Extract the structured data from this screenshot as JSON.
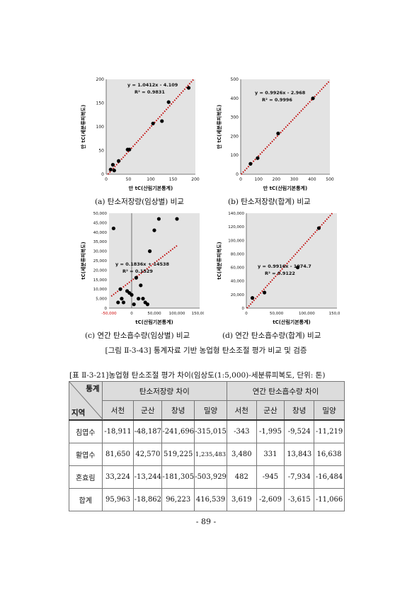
{
  "charts": [
    {
      "id": "a",
      "caption": "(a) 탄소저장량(임상별) 비교",
      "eq": "y = 1.0412x - 4.109",
      "r2": "R² = 0.9831",
      "xlabel": "만 tC(산림기본통계)",
      "ylabel": "만 tC(세분류피복도)",
      "xticks": [
        "0",
        "50",
        "100",
        "150",
        "200"
      ],
      "yticks": [
        "0",
        "50",
        "100",
        "150",
        "200"
      ]
    },
    {
      "id": "b",
      "caption": "(b) 탄소저장량(합계) 비교",
      "eq": "y = 0.9926x - 2.968",
      "r2": "R² = 0.9996",
      "xlabel": "만 tC(산림기본통계)",
      "ylabel": "만 tC(세분류피복도)",
      "xticks": [
        "0",
        "100",
        "200",
        "300",
        "400",
        "500"
      ],
      "yticks": [
        "0",
        "100",
        "200",
        "300",
        "400",
        "500"
      ]
    },
    {
      "id": "c",
      "caption": "(c) 연간 탄소흡수량(임상별) 비교",
      "eq": "y = 0.1836x + 14538",
      "r2": "R² = 0.1529",
      "xlabel": "tC(산림기본통계)",
      "ylabel": "tC(세분류피복도)",
      "xticks": [
        "-50,000",
        "0",
        "50,000",
        "100,000",
        "150,000"
      ],
      "yticks": [
        "0",
        "5,000",
        "10,000",
        "15,000",
        "20,000",
        "25,000",
        "30,000",
        "35,000",
        "40,000",
        "45,000",
        "50,000"
      ]
    },
    {
      "id": "d",
      "caption": "(d) 연간 탄소흡수량(합계) 비교",
      "eq": "y = 0.9916x - 1074.7",
      "r2": "R² = 0.9122",
      "xlabel": "tC(산림기본통계)",
      "ylabel": "tC(세분류피복도)",
      "xticks": [
        "0",
        "50,000",
        "100,000",
        "150,000"
      ],
      "yticks": [
        "0",
        "20,000",
        "40,000",
        "60,000",
        "80,000",
        "100,000",
        "120,000",
        "140,000"
      ]
    }
  ],
  "chart_data": [
    {
      "type": "scatter",
      "id": "a",
      "x": [
        10,
        15,
        18,
        28,
        48,
        52,
        105,
        125,
        140,
        185
      ],
      "y": [
        10,
        20,
        8,
        28,
        52,
        52,
        107,
        112,
        152,
        182
      ],
      "xlim": [
        0,
        200
      ],
      "ylim": [
        0,
        200
      ],
      "trendline": {
        "slope": 1.0412,
        "intercept": -4.109
      }
    },
    {
      "type": "scatter",
      "id": "b",
      "x": [
        55,
        95,
        210,
        405
      ],
      "y": [
        55,
        85,
        215,
        400
      ],
      "xlim": [
        0,
        500
      ],
      "ylim": [
        0,
        500
      ],
      "trendline": {
        "slope": 0.9926,
        "intercept": -2.968
      }
    },
    {
      "type": "scatter",
      "id": "c",
      "x": [
        -40000,
        -30000,
        -25000,
        -22000,
        -18000,
        -10000,
        -5000,
        0,
        5000,
        10000,
        15000,
        20000,
        40000,
        60000,
        25000,
        30000,
        35000,
        50000,
        100000
      ],
      "y": [
        42000,
        3000,
        10000,
        5000,
        3000,
        9000,
        8000,
        7000,
        2000,
        16000,
        5000,
        12000,
        30000,
        47000,
        5000,
        3000,
        2000,
        41000,
        47000
      ],
      "xlim": [
        -50000,
        150000
      ],
      "ylim": [
        0,
        50000
      ],
      "trendline": {
        "slope": 0.1836,
        "intercept": 14538
      }
    },
    {
      "type": "scatter",
      "id": "d",
      "x": [
        10000,
        30000,
        85000,
        120000
      ],
      "y": [
        15000,
        23000,
        60000,
        118000
      ],
      "xlim": [
        0,
        150000
      ],
      "ylim": [
        0,
        140000
      ],
      "trendline": {
        "slope": 0.9916,
        "intercept": -1074.7
      }
    }
  ],
  "figure_title": "[그림 Ⅱ-3-43] 통계자료 기반 농업형 탄소조절 평가 비교 및 검증",
  "table": {
    "title": "[표 Ⅱ-3-21]농업형 탄소조절 평가 차이(임상도(1:5,000)-세분류피복도, 단위: 톤)",
    "corner_top": "통계",
    "corner_bottom": "지역",
    "group1": "탄소저장량 차이",
    "group2": "연간 탄소흡수량 차이",
    "regions": [
      "서천",
      "군산",
      "창녕",
      "밀양",
      "서천",
      "군산",
      "창녕",
      "밀양"
    ],
    "rows": [
      {
        "label": "침엽수",
        "values": [
          "-18,911",
          "-48,187",
          "-241,696",
          "-315,015",
          "-343",
          "-1,995",
          "-9,524",
          "-11,219"
        ]
      },
      {
        "label": "활엽수",
        "values": [
          "81,650",
          "42,570",
          "519,225",
          "1,235,483",
          "3,480",
          "331",
          "13,843",
          "16,638"
        ]
      },
      {
        "label": "혼효림",
        "values": [
          "33,224",
          "-13,244",
          "-181,305",
          "-503,929",
          "482",
          "-945",
          "-7,934",
          "-16,484"
        ]
      },
      {
        "label": "합계",
        "values": [
          "95,963",
          "-18,862",
          "96,223",
          "416,539",
          "3,619",
          "-2,609",
          "-3,615",
          "-11,066"
        ]
      }
    ]
  },
  "page_number": "- 89 -"
}
